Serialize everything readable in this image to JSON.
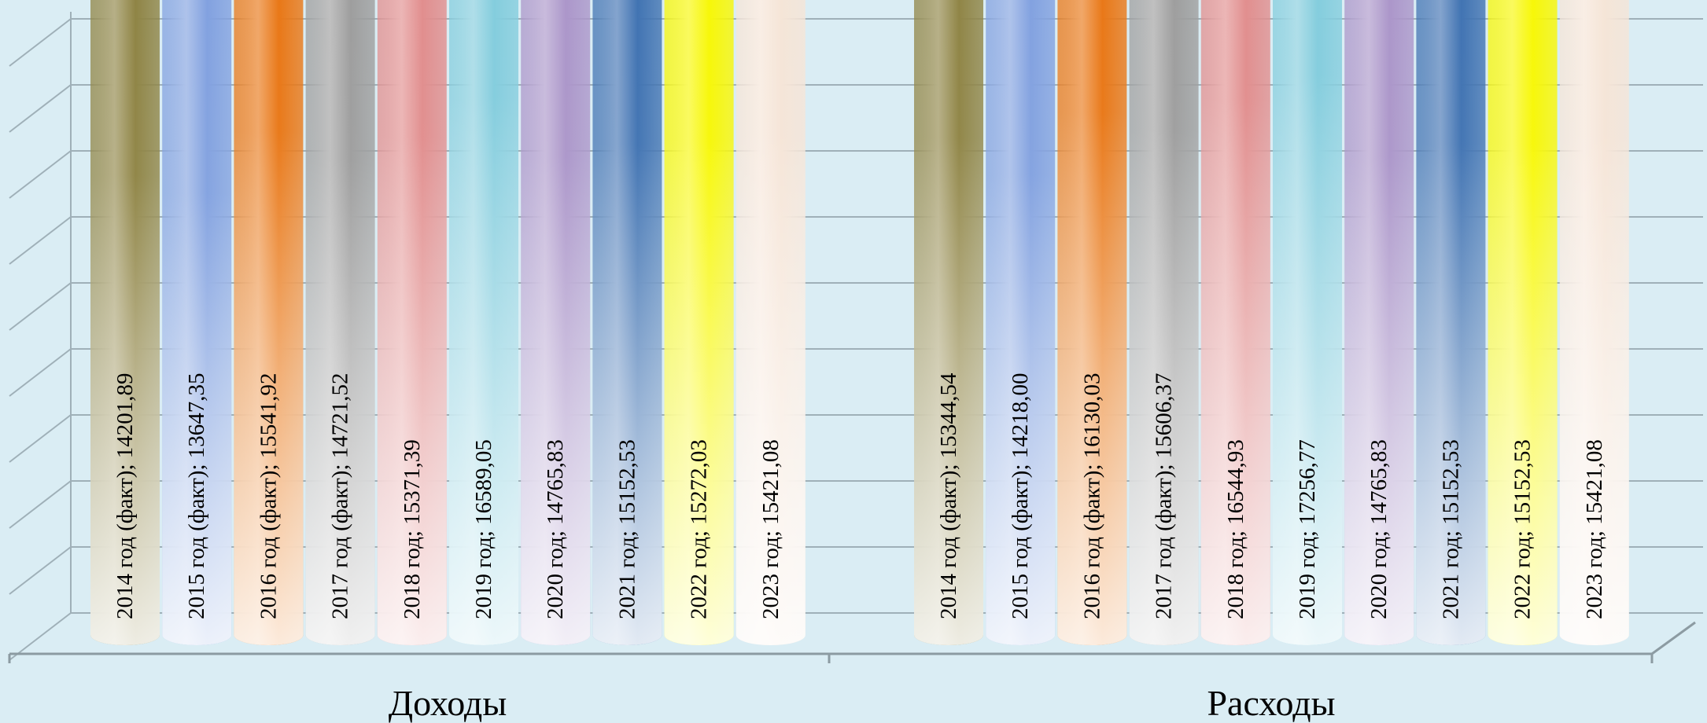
{
  "chart_data": {
    "type": "bar",
    "style": "3d-cylinder",
    "categories": [
      "Доходы",
      "Расходы"
    ],
    "series": [
      {
        "name": "2014 год (факт)",
        "values": [
          14201.89,
          15344.54
        ],
        "color": "#8c8140"
      },
      {
        "name": "2015 год (факт)",
        "values": [
          13647.35,
          14218.0
        ],
        "color": "#7f9fdf"
      },
      {
        "name": "2016 год (факт)",
        "values": [
          15541.92,
          16130.03
        ],
        "color": "#e8730f"
      },
      {
        "name": "2017 год (факт)",
        "values": [
          14721.52,
          15606.37
        ],
        "color": "#9b9b9b"
      },
      {
        "name": "2018 год",
        "values": [
          15371.39,
          16544.93
        ],
        "color": "#e08a8a"
      },
      {
        "name": "2019 год",
        "values": [
          16589.05,
          17256.77
        ],
        "color": "#7fcbdc"
      },
      {
        "name": "2020 год",
        "values": [
          14765.83,
          14765.83
        ],
        "color": "#a993c8"
      },
      {
        "name": "2021 год",
        "values": [
          15152.53,
          15152.53
        ],
        "color": "#3b6fb0"
      },
      {
        "name": "2022 год",
        "values": [
          15272.03,
          15152.53
        ],
        "color": "#f7f700"
      },
      {
        "name": "2023 год",
        "values": [
          15421.08,
          15421.08
        ],
        "color": "#f5e4d6"
      }
    ],
    "labels": [
      [
        "2014 год (факт); 14201,89",
        "2015 год (факт); 13647,35",
        "2016 год (факт); 15541,92",
        "2017 год (факт); 14721,52",
        "2018 год; 15371,39",
        "2019 год; 16589,05",
        "2020 год; 14765,83",
        "2021 год; 15152,53",
        "2022 год; 15272,03",
        "2023 год; 15421,08"
      ],
      [
        "2014 год (факт); 15344,54",
        "2015 год (факт); 14218,00",
        "2016 год (факт); 16130,03",
        "2017 год (факт); 15606,37",
        "2018 год; 16544,93",
        "2019 год; 17256,77",
        "2020 год; 14765,83",
        "2021 год; 15152,53",
        "2022 год; 15152,53",
        "2023 год; 15421,08"
      ]
    ],
    "gridlines": true,
    "axis_tick_labels_visible": false,
    "legend": "none"
  }
}
